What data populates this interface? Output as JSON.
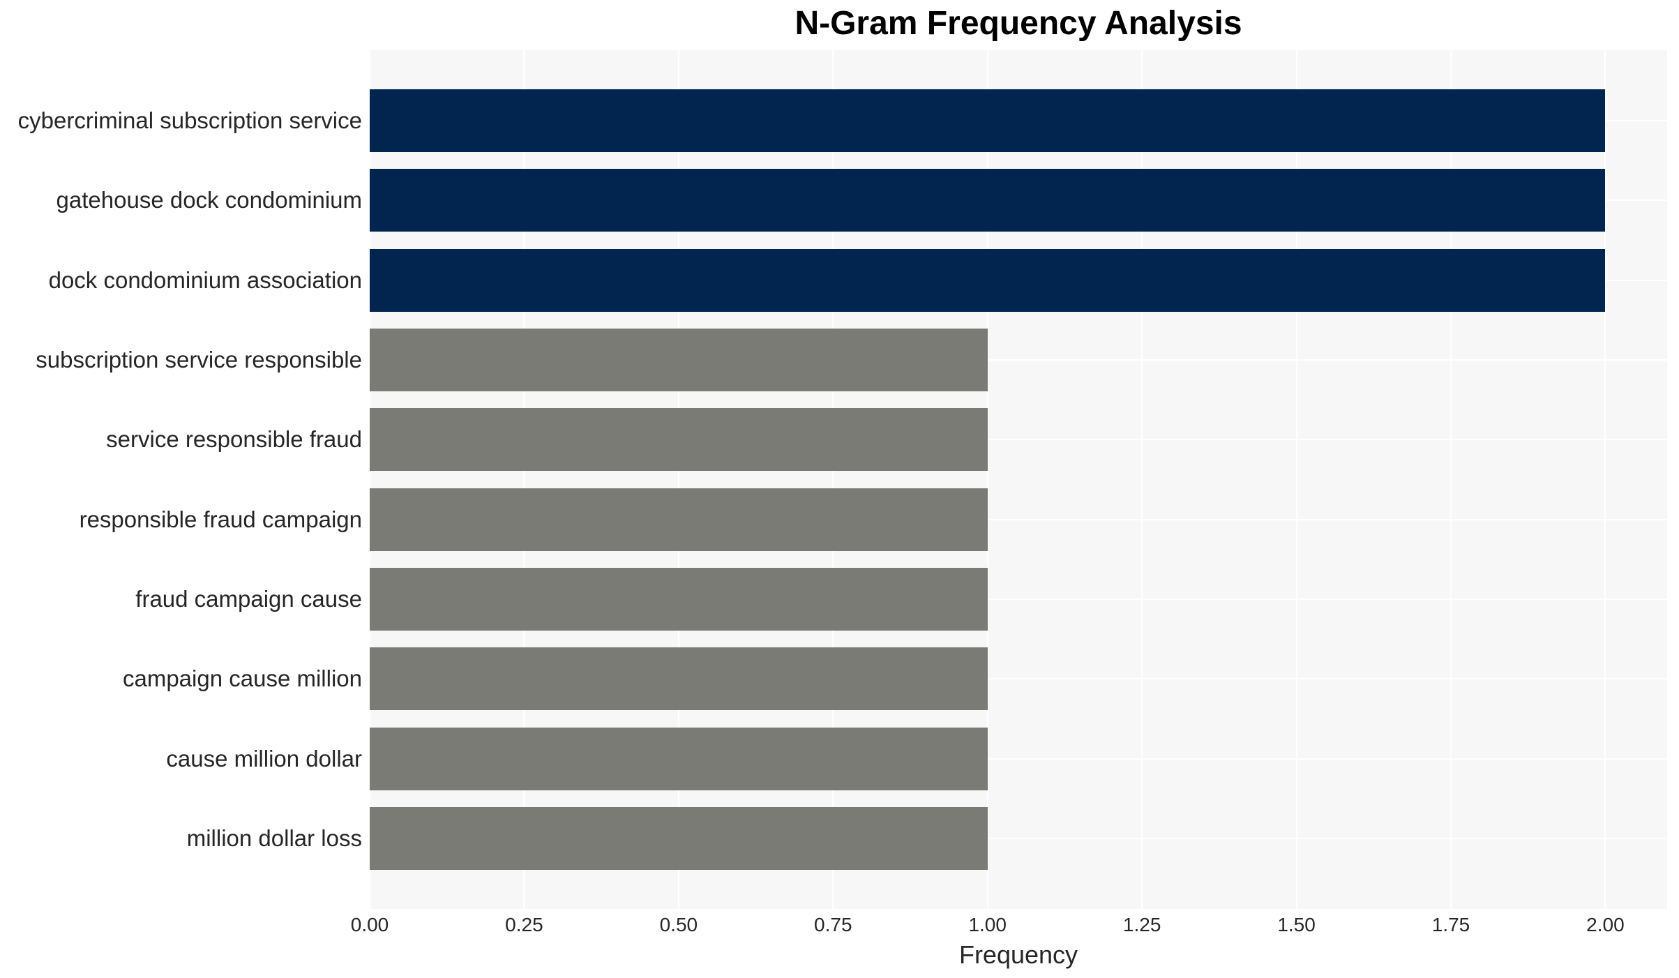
{
  "chart_data": {
    "type": "bar",
    "orientation": "horizontal",
    "title": "N-Gram Frequency Analysis",
    "xlabel": "Frequency",
    "ylabel": "",
    "categories": [
      "cybercriminal subscription service",
      "gatehouse dock condominium",
      "dock condominium association",
      "subscription service responsible",
      "service responsible fraud",
      "responsible fraud campaign",
      "fraud campaign cause",
      "campaign cause million",
      "cause million dollar",
      "million dollar loss"
    ],
    "values": [
      2,
      2,
      2,
      1,
      1,
      1,
      1,
      1,
      1,
      1
    ],
    "bar_colors": [
      "#022550",
      "#022550",
      "#022550",
      "#7b7b76",
      "#7b7b76",
      "#7b7b76",
      "#7b7b76",
      "#7b7b76",
      "#7b7b76",
      "#7b7b76"
    ],
    "xlim": [
      0,
      2.1
    ],
    "xticks": [
      0,
      0.25,
      0.5,
      0.75,
      1.0,
      1.25,
      1.5,
      1.75,
      2.0
    ],
    "xtick_labels": [
      "0.00",
      "0.25",
      "0.50",
      "0.75",
      "1.00",
      "1.25",
      "1.50",
      "1.75",
      "2.00"
    ],
    "grid": true,
    "legend": false,
    "colors": {
      "high_frequency_bar": "#022550",
      "low_frequency_bar": "#7b7b76",
      "plot_background": "#f7f7f7",
      "grid_line": "#ffffff",
      "axis_text": "#262626",
      "title_text": "#000000"
    }
  }
}
